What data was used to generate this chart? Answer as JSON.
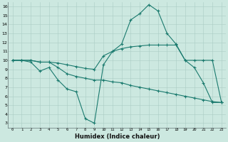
{
  "xlabel": "Humidex (Indice chaleur)",
  "bg_color": "#cce8e0",
  "line_color": "#1a7a6e",
  "grid_color": "#aaccc4",
  "xlim": [
    -0.5,
    23.5
  ],
  "ylim": [
    2.5,
    16.5
  ],
  "xticks": [
    0,
    1,
    2,
    3,
    4,
    5,
    6,
    7,
    8,
    9,
    10,
    11,
    12,
    13,
    14,
    15,
    16,
    17,
    18,
    19,
    20,
    21,
    22,
    23
  ],
  "yticks": [
    3,
    4,
    5,
    6,
    7,
    8,
    9,
    10,
    11,
    12,
    13,
    14,
    15,
    16
  ],
  "line1_x": [
    0,
    1,
    2,
    3,
    4,
    5,
    6,
    7,
    8,
    9,
    10,
    11,
    12,
    13,
    14,
    15,
    16,
    17,
    18,
    19,
    20,
    21,
    22,
    23
  ],
  "line1_y": [
    10,
    10,
    9.8,
    8.8,
    9.2,
    7.8,
    6.8,
    6.5,
    3.5,
    3.0,
    9.5,
    11.0,
    11.8,
    14.5,
    15.2,
    16.2,
    15.5,
    13.0,
    11.8,
    10.0,
    9.2,
    7.5,
    5.3,
    5.3
  ],
  "line2_x": [
    0,
    1,
    2,
    3,
    4,
    5,
    6,
    7,
    8,
    9,
    10,
    11,
    12,
    13,
    14,
    15,
    16,
    17,
    18,
    19,
    20,
    21,
    22,
    23
  ],
  "line2_y": [
    10,
    10,
    10,
    9.8,
    9.8,
    9.7,
    9.5,
    9.3,
    9.1,
    9.0,
    10.5,
    11.0,
    11.3,
    11.5,
    11.6,
    11.7,
    11.7,
    11.7,
    11.7,
    10.0,
    10.0,
    10.0,
    10.0,
    5.3
  ],
  "line3_x": [
    0,
    1,
    2,
    3,
    4,
    5,
    6,
    7,
    8,
    9,
    10,
    11,
    12,
    13,
    14,
    15,
    16,
    17,
    18,
    19,
    20,
    21,
    22,
    23
  ],
  "line3_y": [
    10,
    10,
    10,
    9.8,
    9.8,
    9.2,
    8.5,
    8.2,
    8.0,
    7.8,
    7.8,
    7.6,
    7.5,
    7.2,
    7.0,
    6.8,
    6.6,
    6.4,
    6.2,
    6.0,
    5.8,
    5.6,
    5.4,
    5.3
  ]
}
